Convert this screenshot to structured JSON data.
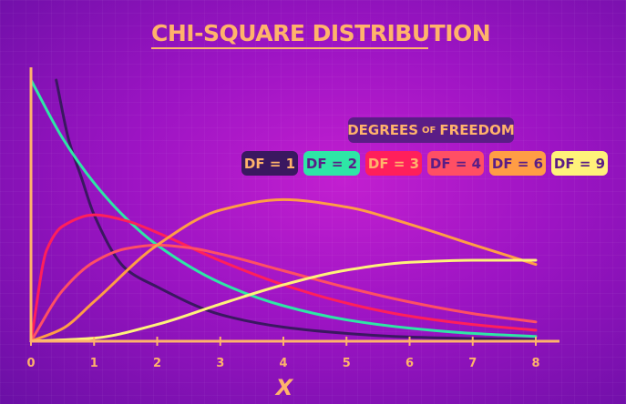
{
  "title": "CHI-SQUARE DISTRIBUTION",
  "legend": {
    "title_parts": [
      "DEGREES",
      "OF",
      "FREEDOM"
    ],
    "entries": [
      {
        "label": "DF = 1",
        "bg": "#3a1860",
        "fg": "#ffb36b"
      },
      {
        "label": "DF = 2",
        "bg": "#2ee6a6",
        "fg": "#5a1d86"
      },
      {
        "label": "DF = 3",
        "bg": "#ff1f5b",
        "fg": "#ffb36b"
      },
      {
        "label": "DF = 4",
        "bg": "#ff4f64",
        "fg": "#5a1d86"
      },
      {
        "label": "DF = 6",
        "bg": "#ff9d45",
        "fg": "#5a1d86"
      },
      {
        "label": "DF = 9",
        "bg": "#fff27a",
        "fg": "#5a1d86"
      }
    ]
  },
  "chart_data": {
    "type": "line",
    "xlabel": "X",
    "ylabel": "",
    "xlim": [
      0,
      8
    ],
    "ylim": [
      0,
      0.5
    ],
    "xticks": [
      "0",
      "1",
      "2",
      "3",
      "4",
      "5",
      "6",
      "7",
      "8"
    ],
    "grid": false,
    "legend_position": "top-right",
    "series": [
      {
        "name": "DF = 1",
        "df": 1,
        "color": "#3a1860",
        "x": [
          0.4,
          0.6,
          0.8,
          1,
          1.5,
          2,
          3,
          4,
          5,
          6,
          7,
          8
        ],
        "y": [
          0.5,
          0.385,
          0.313,
          0.242,
          0.139,
          0.104,
          0.051,
          0.027,
          0.015,
          0.008,
          0.005,
          0.003
        ]
      },
      {
        "name": "DF = 2",
        "df": 2,
        "color": "#2ee6a6",
        "x": [
          0,
          0.5,
          1,
          1.5,
          2,
          3,
          4,
          5,
          6,
          7,
          8
        ],
        "y": [
          0.5,
          0.389,
          0.303,
          0.236,
          0.184,
          0.112,
          0.068,
          0.041,
          0.025,
          0.015,
          0.009
        ]
      },
      {
        "name": "DF = 3",
        "df": 3,
        "color": "#ff1f5b",
        "x": [
          0,
          0.25,
          0.5,
          1,
          1.5,
          2,
          3,
          4,
          5,
          6,
          7,
          8
        ],
        "y": [
          0,
          0.175,
          0.22,
          0.242,
          0.231,
          0.208,
          0.154,
          0.108,
          0.073,
          0.048,
          0.032,
          0.021
        ]
      },
      {
        "name": "DF = 4",
        "df": 4,
        "color": "#ff4f64",
        "x": [
          0,
          0.5,
          1,
          1.5,
          2,
          2.5,
          3,
          4,
          5,
          6,
          7,
          8
        ],
        "y": [
          0,
          0.097,
          0.152,
          0.177,
          0.184,
          0.179,
          0.167,
          0.135,
          0.103,
          0.075,
          0.053,
          0.037
        ]
      },
      {
        "name": "DF = 6",
        "df": 6,
        "color": "#ff9d45",
        "x": [
          0,
          0.5,
          1,
          2,
          3,
          4,
          5,
          6,
          7,
          8
        ],
        "y": [
          0,
          0.024,
          0.076,
          0.184,
          0.251,
          0.271,
          0.257,
          0.224,
          0.185,
          0.147
        ]
      },
      {
        "name": "DF = 9",
        "df": 9,
        "color": "#fff27a",
        "x": [
          0,
          1,
          2,
          3,
          4,
          5,
          6,
          7,
          8
        ],
        "y": [
          0,
          0.006,
          0.032,
          0.071,
          0.108,
          0.136,
          0.151,
          0.155,
          0.155
        ]
      }
    ]
  },
  "colors": {
    "axis": "#ffb36b",
    "background": "#a516c8"
  }
}
